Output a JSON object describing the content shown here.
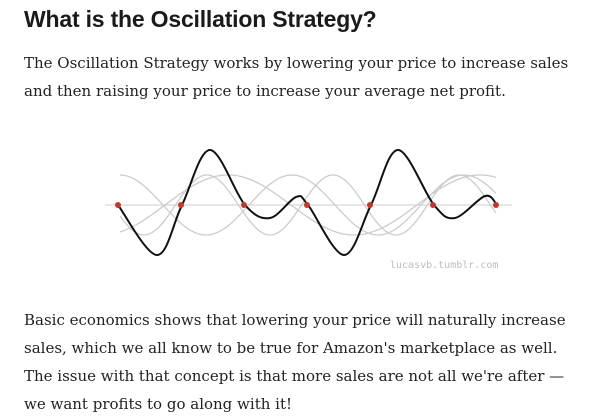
{
  "heading": "What is the Oscillation Strategy?",
  "intro": "The Oscillation Strategy works by lowering your price to increase sales and then raising your price to increase your average net profit.",
  "figure": {
    "watermark": "lucasvb.tumblr.com",
    "colors": {
      "main_curve": "#111111",
      "component_curves": "#cccccc",
      "points": "#c0392b",
      "axis": "#dddddd"
    }
  },
  "body": "Basic economics shows that lowering your price will naturally increase sales, which we all know to be true for Amazon's marketplace as well. The issue with that concept is that more sales are not all we're after — we want profits to go along with it!"
}
